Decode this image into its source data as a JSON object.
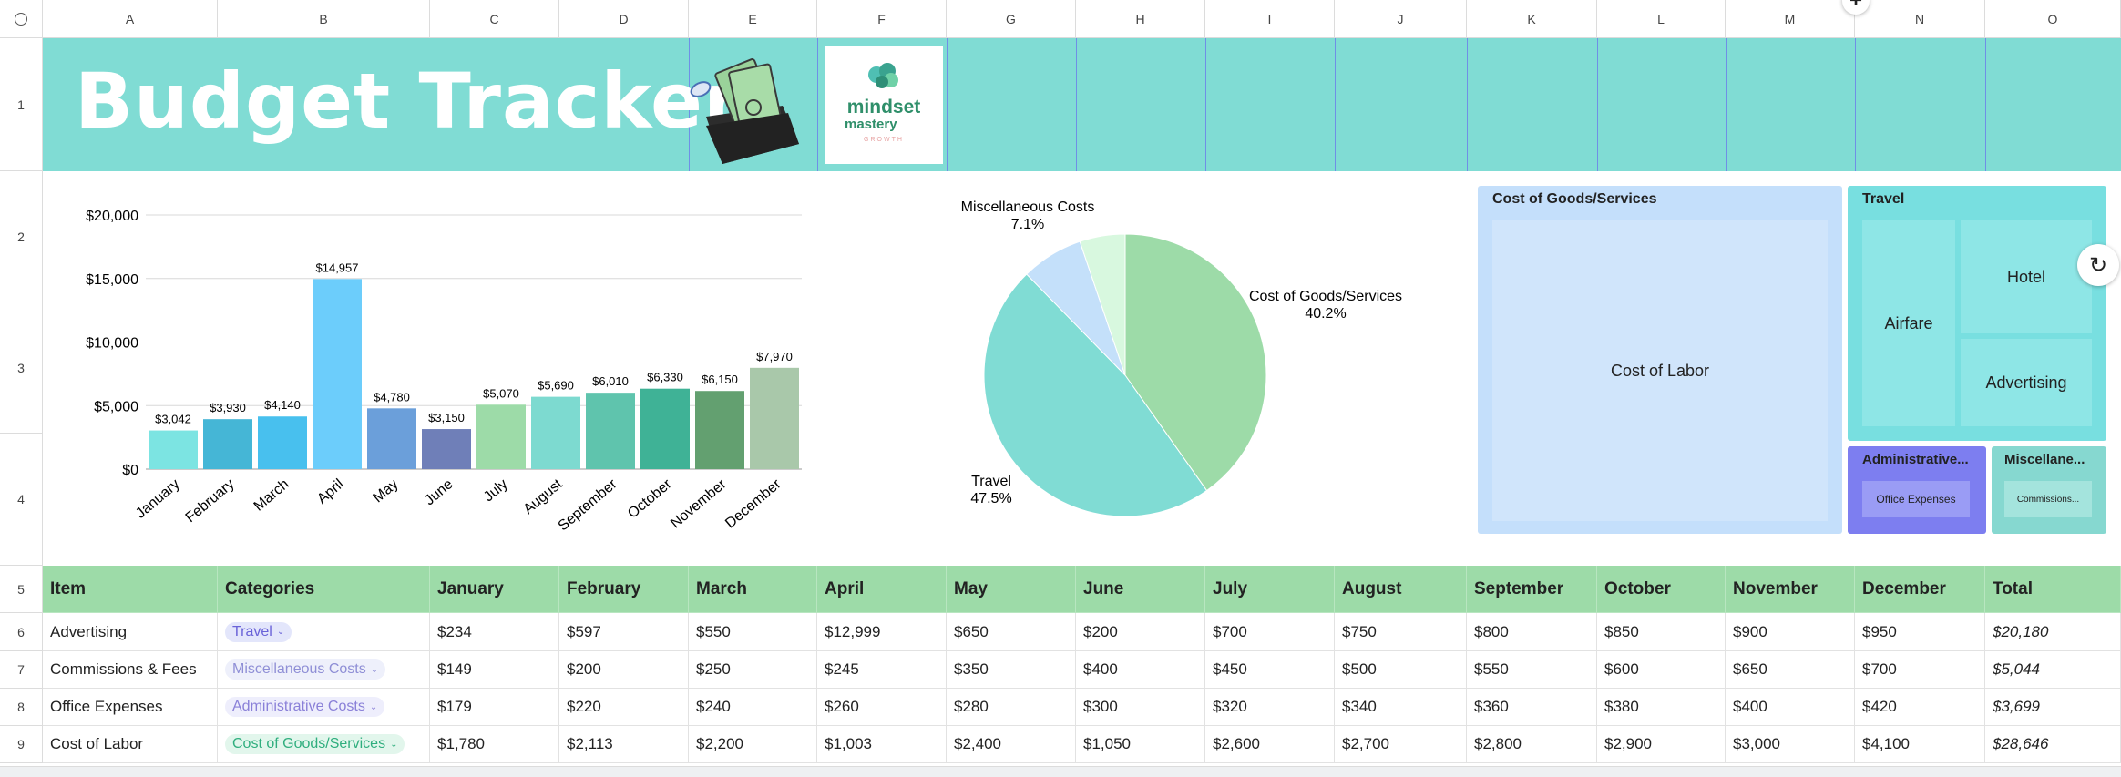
{
  "columns": [
    "A",
    "B",
    "C",
    "D",
    "E",
    "F",
    "G",
    "H",
    "I",
    "J",
    "K",
    "L",
    "M",
    "N",
    "O"
  ],
  "rows": [
    "1",
    "2",
    "3",
    "4",
    "5",
    "6",
    "7",
    "8",
    "9"
  ],
  "banner": {
    "title": "Budget Tracker",
    "logo_line1": "mindset",
    "logo_line2": "mastery",
    "logo_line3": "GROWTH"
  },
  "chart_data": [
    {
      "type": "bar",
      "title": "",
      "xlabel": "",
      "ylabel": "",
      "categories": [
        "January",
        "February",
        "March",
        "April",
        "May",
        "June",
        "July",
        "August",
        "September",
        "October",
        "November",
        "December"
      ],
      "values": [
        3042,
        3930,
        4140,
        14957,
        4780,
        3150,
        5070,
        5690,
        6010,
        6330,
        6150,
        7970
      ],
      "value_labels": [
        "$3,042",
        "$3,930",
        "$4,140",
        "$14,957",
        "$4,780",
        "$3,150",
        "$5,070",
        "$5,690",
        "$6,010",
        "$6,330",
        "$6,150",
        "$7,970"
      ],
      "colors": [
        "#7ce4e2",
        "#45b6d6",
        "#48c0ee",
        "#6ccdfb",
        "#6b9fda",
        "#6f7fb8",
        "#9ddba8",
        "#7ddad0",
        "#5fc4ad",
        "#3fb296",
        "#63a070",
        "#a9c8aa"
      ],
      "yticks": [
        "$0",
        "$5,000",
        "$10,000",
        "$15,000",
        "$20,000"
      ],
      "ylim": [
        0,
        20000
      ],
      "grid": true
    },
    {
      "type": "pie",
      "title": "",
      "slices": [
        {
          "name": "Cost of Goods/Services",
          "value": 40.2,
          "label": "40.2%",
          "color": "#9ddba8"
        },
        {
          "name": "Travel",
          "value": 47.5,
          "label": "47.5%",
          "color": "#80dcd4"
        },
        {
          "name": "Miscellaneous Costs",
          "value": 7.1,
          "label": "7.1%",
          "color": "#c4e0fa"
        },
        {
          "name": "",
          "value": 5.2,
          "label": "",
          "color": "#d8f8df"
        }
      ]
    },
    {
      "type": "treemap",
      "groups": [
        {
          "name": "Cost of Goods/Services",
          "items": [
            "Cost of Labor"
          ]
        },
        {
          "name": "Travel",
          "items": [
            "Airfare",
            "Hotel",
            "Advertising"
          ]
        },
        {
          "name": "Administrative...",
          "items": [
            "Office Expenses"
          ]
        },
        {
          "name": "Miscellane...",
          "items": [
            "Commissions..."
          ]
        }
      ]
    }
  ],
  "table": {
    "headers": [
      "Item",
      "Categories",
      "January",
      "February",
      "March",
      "April",
      "May",
      "June",
      "July",
      "August",
      "September",
      "October",
      "November",
      "December",
      "Total"
    ],
    "rows": [
      {
        "item": "Advertising",
        "category": "Travel",
        "cat_color": "#e3e6fb",
        "cat_text": "#6a63d8",
        "values": [
          "$234",
          "$597",
          "$550",
          "$12,999",
          "$650",
          "$200",
          "$700",
          "$750",
          "$800",
          "$850",
          "$900",
          "$950"
        ],
        "total": "$20,180"
      },
      {
        "item": "Commissions & Fees",
        "category": "Miscellaneous Costs",
        "cat_color": "#eef0fb",
        "cat_text": "#8f8fd6",
        "values": [
          "$149",
          "$200",
          "$250",
          "$245",
          "$350",
          "$400",
          "$450",
          "$500",
          "$550",
          "$600",
          "$650",
          "$700"
        ],
        "total": "$5,044"
      },
      {
        "item": "Office Expenses",
        "category": "Administrative Costs",
        "cat_color": "#eeeefc",
        "cat_text": "#8a80d8",
        "values": [
          "$179",
          "$220",
          "$240",
          "$260",
          "$280",
          "$300",
          "$320",
          "$340",
          "$360",
          "$380",
          "$400",
          "$420"
        ],
        "total": "$3,699"
      },
      {
        "item": "Cost of Labor",
        "category": "Cost of Goods/Services",
        "cat_color": "#e2f6ec",
        "cat_text": "#2fae7e",
        "values": [
          "$1,780",
          "$2,113",
          "$2,200",
          "$1,003",
          "$2,400",
          "$1,050",
          "$2,600",
          "$2,700",
          "$2,800",
          "$2,900",
          "$3,000",
          "$4,100"
        ],
        "total": "$28,646"
      }
    ]
  }
}
